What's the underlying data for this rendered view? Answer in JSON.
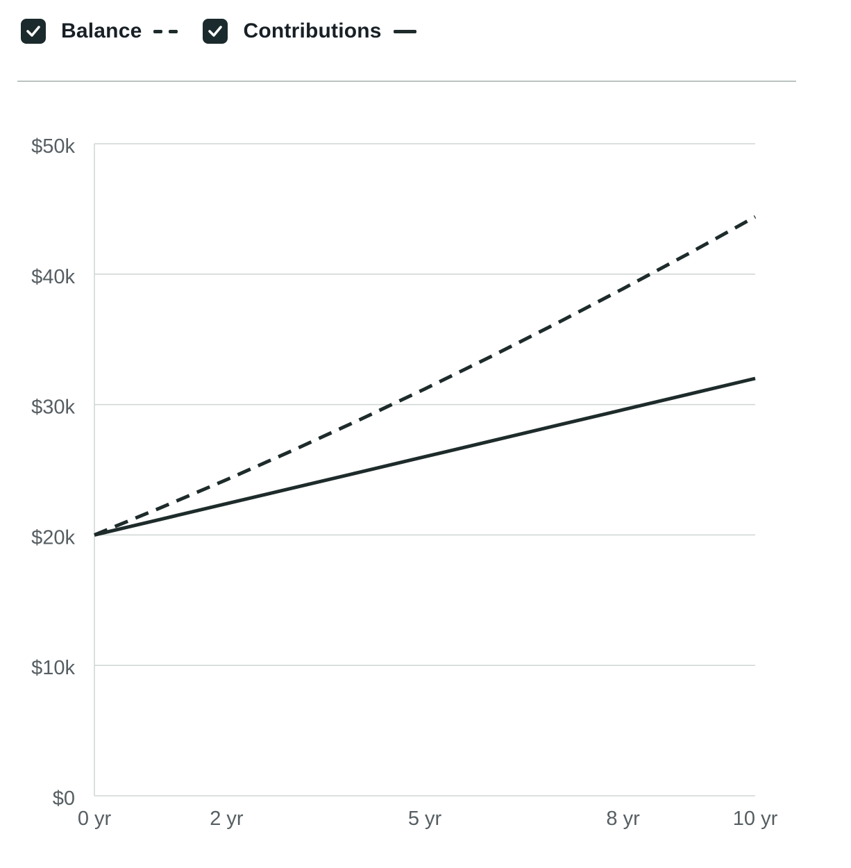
{
  "legend": {
    "items": [
      {
        "label": "Balance",
        "checked": true,
        "line_style": "dashed"
      },
      {
        "label": "Contributions",
        "checked": true,
        "line_style": "solid"
      }
    ]
  },
  "colors": {
    "line": "#1e2b2b",
    "checkbox": "#1b2a2c",
    "grid": "#cdd5d3",
    "axis_label": "#565e62",
    "legend_text": "#182026",
    "divider": "#b9c4c1",
    "background": "#ffffff"
  },
  "chart_data": {
    "type": "line",
    "x": [
      0,
      1,
      2,
      3,
      4,
      5,
      6,
      7,
      8,
      9,
      10
    ],
    "series": [
      {
        "name": "Balance",
        "style": "dashed",
        "values": [
          20000,
          22080,
          24240,
          26480,
          28800,
          31200,
          33680,
          36240,
          38880,
          41600,
          44400
        ]
      },
      {
        "name": "Contributions",
        "style": "solid",
        "values": [
          20000,
          21200,
          22400,
          23600,
          24800,
          26000,
          27200,
          28400,
          29600,
          30800,
          32000
        ]
      }
    ],
    "xlim": [
      0,
      10
    ],
    "ylim": [
      0,
      50000
    ],
    "xticks": [
      {
        "value": 0,
        "label": "0 yr"
      },
      {
        "value": 2,
        "label": "2 yr"
      },
      {
        "value": 5,
        "label": "5 yr"
      },
      {
        "value": 8,
        "label": "8 yr"
      },
      {
        "value": 10,
        "label": "10 yr"
      }
    ],
    "yticks": [
      {
        "value": 0,
        "label": "$0"
      },
      {
        "value": 10000,
        "label": "$10k"
      },
      {
        "value": 20000,
        "label": "$20k"
      },
      {
        "value": 30000,
        "label": "$30k"
      },
      {
        "value": 40000,
        "label": "$40k"
      },
      {
        "value": 50000,
        "label": "$50k"
      }
    ],
    "grid": "horizontal",
    "legend_position": "top",
    "title": "",
    "xlabel": "",
    "ylabel": ""
  }
}
